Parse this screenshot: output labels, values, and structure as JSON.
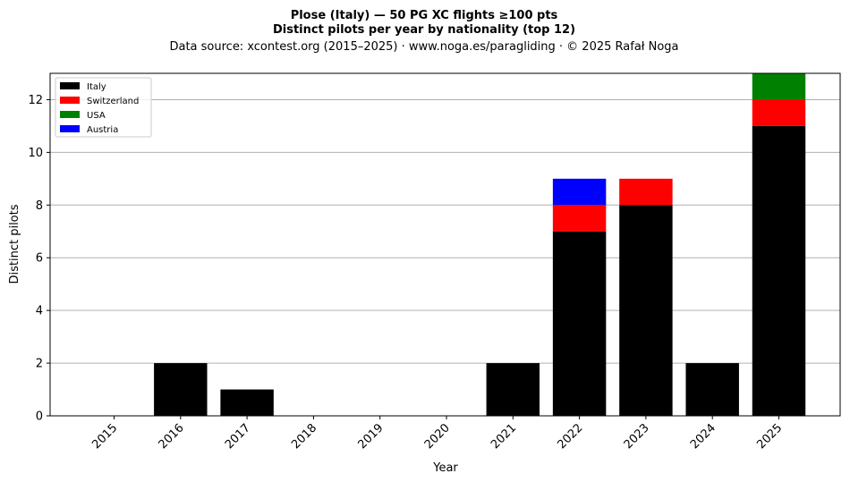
{
  "chart_data": {
    "type": "bar",
    "stacked": true,
    "title": "Plose (Italy)  —  50 PG XC flights ≥100 pts",
    "subtitle": "Distinct pilots per year by nationality (top 12)",
    "source": "Data source: xcontest.org (2015–2025)  ·  www.noga.es/paragliding  ·  © 2025 Rafał Noga",
    "xlabel": "Year",
    "ylabel": "Distinct pilots",
    "ylim": [
      0,
      13
    ],
    "yticks": [
      "0",
      "2",
      "4",
      "6",
      "8",
      "10",
      "12"
    ],
    "grid": "horizontal",
    "legend_position": "top-left",
    "categories": [
      "2015",
      "2016",
      "2017",
      "2018",
      "2019",
      "2020",
      "2021",
      "2022",
      "2023",
      "2024",
      "2025"
    ],
    "series": [
      {
        "name": "Italy",
        "color": "#000000",
        "values": [
          0,
          2,
          1,
          0,
          0,
          0,
          2,
          7,
          8,
          2,
          11
        ]
      },
      {
        "name": "Switzerland",
        "color": "#ff0000",
        "values": [
          0,
          0,
          0,
          0,
          0,
          0,
          0,
          1,
          1,
          0,
          1
        ]
      },
      {
        "name": "USA",
        "color": "#008000",
        "values": [
          0,
          0,
          0,
          0,
          0,
          0,
          0,
          0,
          0,
          0,
          1
        ]
      },
      {
        "name": "Austria",
        "color": "#0000ff",
        "values": [
          0,
          0,
          0,
          0,
          0,
          0,
          0,
          1,
          0,
          0,
          0
        ]
      }
    ]
  }
}
